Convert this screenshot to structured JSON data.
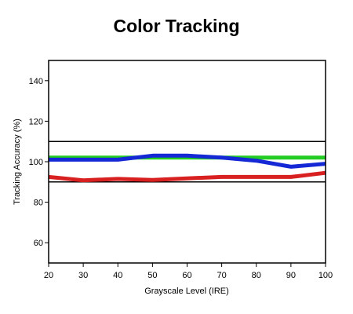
{
  "chart_data": {
    "type": "line",
    "title": "Color Tracking",
    "xlabel": "Grayscale Level (IRE)",
    "ylabel": "Tracking Accuracy (%)",
    "xlim": [
      20,
      100
    ],
    "ylim": [
      50,
      150
    ],
    "x_ticks": [
      "20",
      "30",
      "40",
      "50",
      "60",
      "70",
      "80",
      "90",
      "100"
    ],
    "y_ticks": [
      "60",
      "80",
      "100",
      "120",
      "140"
    ],
    "grid": false,
    "x": [
      20,
      30,
      40,
      50,
      60,
      70,
      80,
      90,
      100
    ],
    "series": [
      {
        "color": "#22cc22",
        "values": [
          102,
          102,
          102,
          102,
          102,
          102,
          102,
          102,
          102
        ]
      },
      {
        "color": "#1428d6",
        "values": [
          101,
          101,
          101,
          103,
          103,
          102,
          100.5,
          97.5,
          99
        ]
      },
      {
        "color": "#d92020",
        "values": [
          92.5,
          90.8,
          91.5,
          91,
          91.8,
          92.5,
          92.5,
          92.5,
          94.5
        ]
      }
    ],
    "reference_lines": [
      110,
      90
    ]
  }
}
